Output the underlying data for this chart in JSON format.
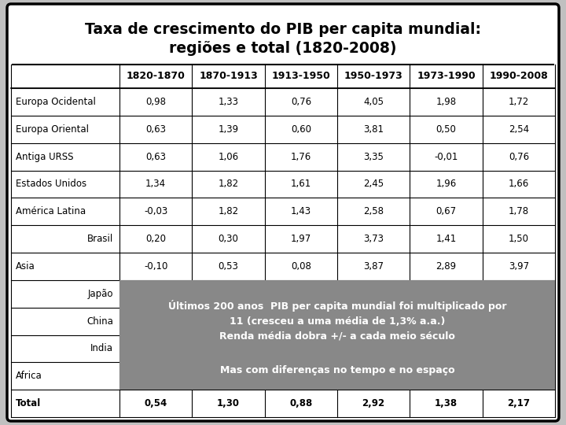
{
  "title_line1": "Taxa de crescimento do PIB per capita mundial:",
  "title_line2": "regiões e total (1820-2008)",
  "col_headers": [
    "",
    "1820-1870",
    "1870-1913",
    "1913-1950",
    "1950-1973",
    "1973-1990",
    "1990-2008"
  ],
  "rows": [
    [
      "Europa Ocidental",
      "0,98",
      "1,33",
      "0,76",
      "4,05",
      "1,98",
      "1,72"
    ],
    [
      "Europa Oriental",
      "0,63",
      "1,39",
      "0,60",
      "3,81",
      "0,50",
      "2,54"
    ],
    [
      "Antiga URSS",
      "0,63",
      "1,06",
      "1,76",
      "3,35",
      "-0,01",
      "0,76"
    ],
    [
      "Estados Unidos",
      "1,34",
      "1,82",
      "1,61",
      "2,45",
      "1,96",
      "1,66"
    ],
    [
      "América Latina",
      "-0,03",
      "1,82",
      "1,43",
      "2,58",
      "0,67",
      "1,78"
    ],
    [
      "Brasil",
      "0,20",
      "0,30",
      "1,97",
      "3,73",
      "1,41",
      "1,50"
    ],
    [
      "Asia",
      "-0,10",
      "0,53",
      "0,08",
      "3,87",
      "2,89",
      "3,97"
    ],
    [
      "Japão",
      "",
      "",
      "",
      "",
      "",
      ""
    ],
    [
      "China",
      "",
      "",
      "",
      "",
      "",
      ""
    ],
    [
      "India",
      "",
      "",
      "",
      "",
      "",
      ""
    ],
    [
      "Africa",
      "",
      "",
      "",
      "",
      "",
      ""
    ],
    [
      "Total",
      "0,54",
      "1,30",
      "0,88",
      "2,92",
      "1,38",
      "2,17"
    ]
  ],
  "row_indents": [
    false,
    false,
    false,
    false,
    false,
    true,
    false,
    true,
    true,
    true,
    false,
    false
  ],
  "overlay_text1": "Últimos 200 anos  PIB per capita mundial foi multiplicado por\n11 (cresceu a uma média de 1,3% a.a.)\nRenda média dobra +/- a cada meio século",
  "overlay_text2": "Mas com diferenças no tempo e no espaço",
  "overlay_color": "#888888",
  "bg_color": "#c0c0c0",
  "table_bg": "#ffffff",
  "border_color": "#000000",
  "text_color": "#000000",
  "white": "#ffffff"
}
